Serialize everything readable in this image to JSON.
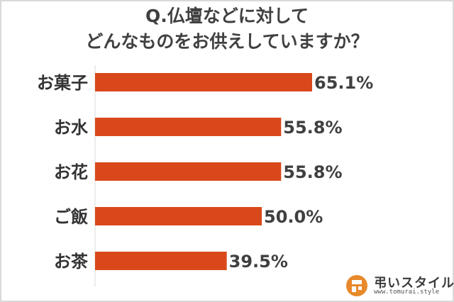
{
  "title_line1": "Q.仏壇などに対して",
  "title_line2": "どんなものをお供えしていますか？",
  "chart_data": {
    "type": "bar",
    "orientation": "horizontal",
    "categories": [
      "お菓子",
      "お水",
      "お花",
      "ご飯",
      "お茶"
    ],
    "values": [
      65.1,
      55.8,
      55.8,
      50.0,
      39.5
    ],
    "value_labels": [
      "65.1%",
      "55.8%",
      "55.8%",
      "50.0%",
      "39.5%"
    ],
    "xlim": [
      0,
      100
    ],
    "bar_color": "#d9481a",
    "grid": false,
    "legend": "none"
  },
  "logo": {
    "name": "弔いスタイル",
    "url": "www.tomurai.style",
    "mark_color": "#e8892b"
  }
}
